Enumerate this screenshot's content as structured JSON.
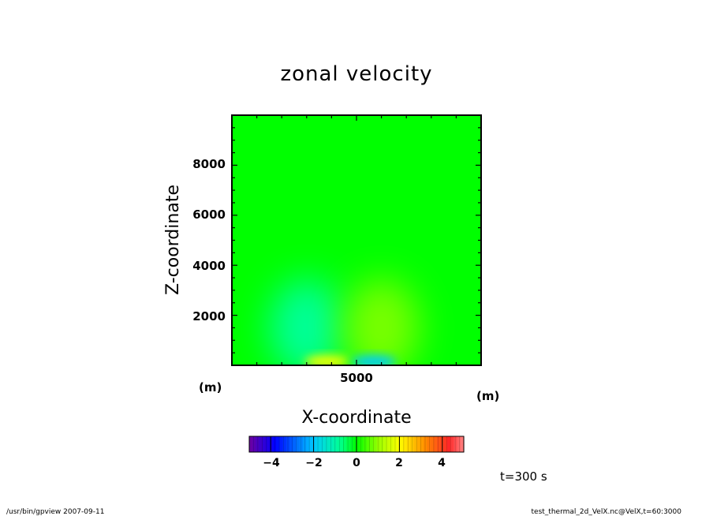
{
  "chart_data": {
    "type": "heatmap",
    "title": "zonal velocity",
    "xlabel": "X-coordinate",
    "ylabel": "Z-coordinate",
    "x_unit": "(m)",
    "y_unit": "(m)",
    "x_range": [
      0,
      10000
    ],
    "y_range": [
      0,
      10000
    ],
    "x_ticks": [
      5000
    ],
    "x_tick_labels": [
      "5000"
    ],
    "y_ticks": [
      2000,
      4000,
      6000,
      8000
    ],
    "y_tick_labels": [
      "2000",
      "4000",
      "6000",
      "8000"
    ],
    "colorbar": {
      "range": [
        -5,
        5
      ],
      "ticks": [
        -4,
        -2,
        0,
        2,
        4
      ],
      "tick_labels": [
        "−4",
        "−2",
        "0",
        "2",
        "4"
      ],
      "colormap": "rainbow"
    },
    "features": [
      {
        "x": 3000,
        "z": 1500,
        "value": -0.8
      },
      {
        "x": 6000,
        "z": 1500,
        "value": 0.8
      },
      {
        "x": 3800,
        "z": 150,
        "value": 1.9
      },
      {
        "x": 5700,
        "z": 150,
        "value": -1.9
      }
    ]
  },
  "time_label": "t=300 s",
  "footer": {
    "left": "/usr/bin/gpview   2007-09-11",
    "right": "test_thermal_2d_VelX.nc@VelX,t=60:3000"
  }
}
